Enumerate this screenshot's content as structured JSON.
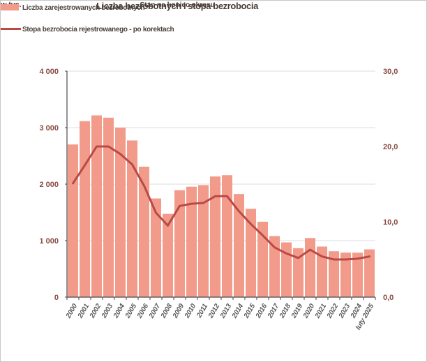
{
  "title": "Liczba bezrobotnych i stopa bezrobocia",
  "subtitle": "Stan na koniec okresu",
  "left_axis_unit": "w tys.",
  "legend": {
    "bars": "Liczba zarejestrowanych bezrobotnych",
    "line": "Stopa bezrobocia rejestrowanego - po korektach"
  },
  "colors": {
    "bar": "#f29b8b",
    "line": "#b94a45",
    "axis_value_label": "#8a4a42",
    "year_label": "#595959",
    "grid": "#dcdcdc",
    "axis_line": "#4a4a4a"
  },
  "chart_data": {
    "type": "bar",
    "subtype": "combo-bar-line",
    "title": "Liczba bezrobotnych i stopa bezrobocia",
    "subtitle": "Stan na koniec okresu",
    "categories": [
      "2000",
      "2001",
      "2002",
      "2003",
      "2004",
      "2005",
      "2006",
      "2007",
      "2008",
      "2009",
      "2010",
      "2011",
      "2012",
      "2013",
      "2014",
      "2015",
      "2016",
      "2017",
      "2018",
      "2019",
      "2020",
      "2021",
      "2022",
      "2023",
      "2024",
      "luty 2025"
    ],
    "series": [
      {
        "name": "Liczba zarejestrowanych bezrobotnych",
        "type": "bar",
        "axis": "left",
        "unit": "tys.",
        "values": [
          2702.6,
          3115.1,
          3217.0,
          3175.7,
          2999.6,
          2773.0,
          2309.4,
          1746.6,
          1473.8,
          1892.7,
          1954.7,
          1982.7,
          2136.8,
          2157.9,
          1825.2,
          1563.3,
          1335.2,
          1081.7,
          968.9,
          866.4,
          1046.4,
          895.2,
          812.3,
          788.2,
          786.8,
          845.5
        ]
      },
      {
        "name": "Stopa bezrobocia rejestrowanego - po korektach",
        "type": "line",
        "axis": "right",
        "unit": "%",
        "values": [
          15.1,
          17.5,
          20.0,
          20.0,
          19.0,
          17.6,
          14.8,
          11.2,
          9.5,
          12.1,
          12.4,
          12.5,
          13.4,
          13.4,
          11.4,
          9.7,
          8.2,
          6.6,
          5.8,
          5.2,
          6.3,
          5.4,
          5.0,
          5.0,
          5.1,
          5.4
        ]
      }
    ],
    "left_axis": {
      "label": "w tys.",
      "range": [
        0,
        4000
      ],
      "tick_values": [
        0,
        1000,
        2000,
        3000,
        4000
      ],
      "tick_labels": [
        "0",
        "1 000",
        "2 000",
        "3 000",
        "4 000"
      ]
    },
    "right_axis": {
      "range": [
        0,
        30
      ],
      "tick_values": [
        0,
        10,
        20,
        30
      ],
      "tick_labels": [
        "0,0",
        "10,0",
        "20,0",
        "30,0"
      ]
    },
    "grid": true,
    "legend_position": "top-center-inside"
  }
}
